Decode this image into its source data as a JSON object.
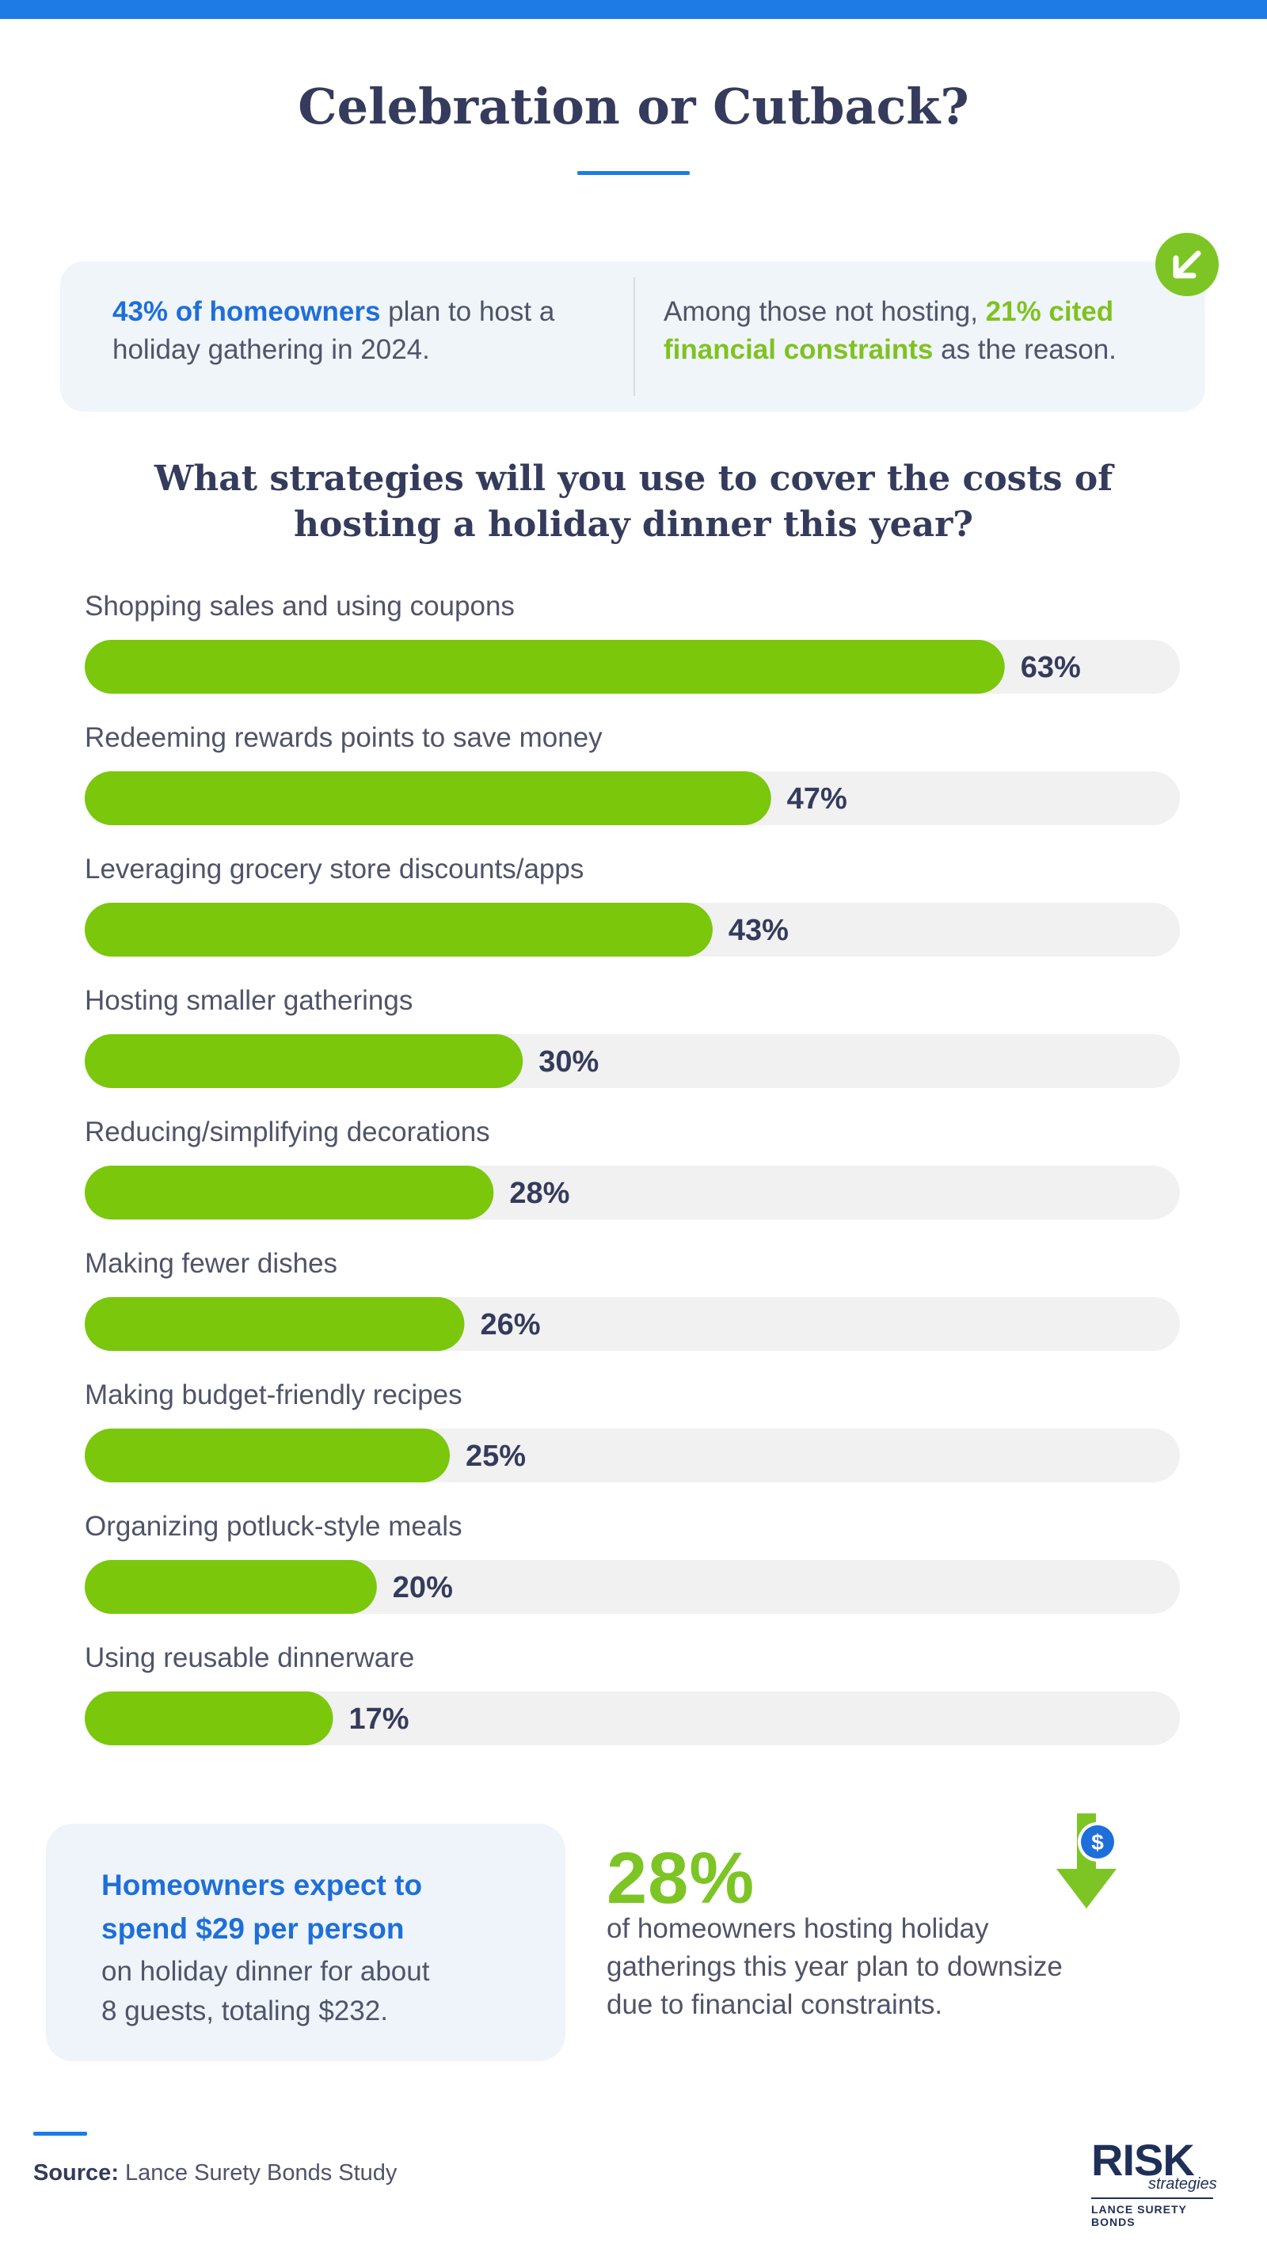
{
  "header": {
    "title": "Celebration or Cutback?"
  },
  "stats": {
    "left_highlight": "43% of homeowners",
    "left_text": " plan to host a holiday gathering in 2024.",
    "right_text_1": "Among those not hosting, ",
    "right_highlight": "21% cited financial constraints",
    "right_text_2": " as the reason.",
    "arrow_icon": "arrow-down-left-icon"
  },
  "question": {
    "line1": "What strategies will you use to cover the costs of",
    "line2": "hosting a holiday dinner this year?"
  },
  "chart_data": {
    "type": "bar",
    "orientation": "horizontal",
    "categories": [
      "Shopping sales and using coupons",
      "Redeeming rewards points to save money",
      "Leveraging grocery store discounts/apps",
      "Hosting smaller gatherings",
      "Reducing/simplifying decorations",
      "Making fewer dishes",
      "Making budget-friendly recipes",
      "Organizing potluck-style meals",
      "Using reusable dinnerware"
    ],
    "values": [
      63,
      47,
      43,
      30,
      28,
      26,
      25,
      20,
      17
    ],
    "value_labels": [
      "63%",
      "47%",
      "43%",
      "30%",
      "28%",
      "26%",
      "25%",
      "20%",
      "17%"
    ],
    "xlim": [
      0,
      75
    ],
    "bar_color": "#7ac70c",
    "track_color": "#f1f1f1"
  },
  "spend": {
    "highlight_line1": "Homeowners expect to",
    "highlight_line2": "spend $29 per person",
    "body_line1": "on holiday dinner for about",
    "body_line2": "8 guests, totaling $232."
  },
  "downsize": {
    "value": "28%",
    "line1": "of homeowners hosting holiday",
    "line2": "gatherings this year plan to downsize",
    "line3": "due to financial constraints.",
    "icon": "dollar-down-arrow-icon"
  },
  "footer": {
    "source_label": "Source:",
    "source_text": " Lance Surety Bonds Study",
    "logo_main": "RISK",
    "logo_sub": "strategies",
    "logo_tag": "LANCE SURETY BONDS"
  },
  "colors": {
    "accent_blue": "#1e7be6",
    "accent_green": "#7cc524",
    "heading": "#353b5c"
  }
}
